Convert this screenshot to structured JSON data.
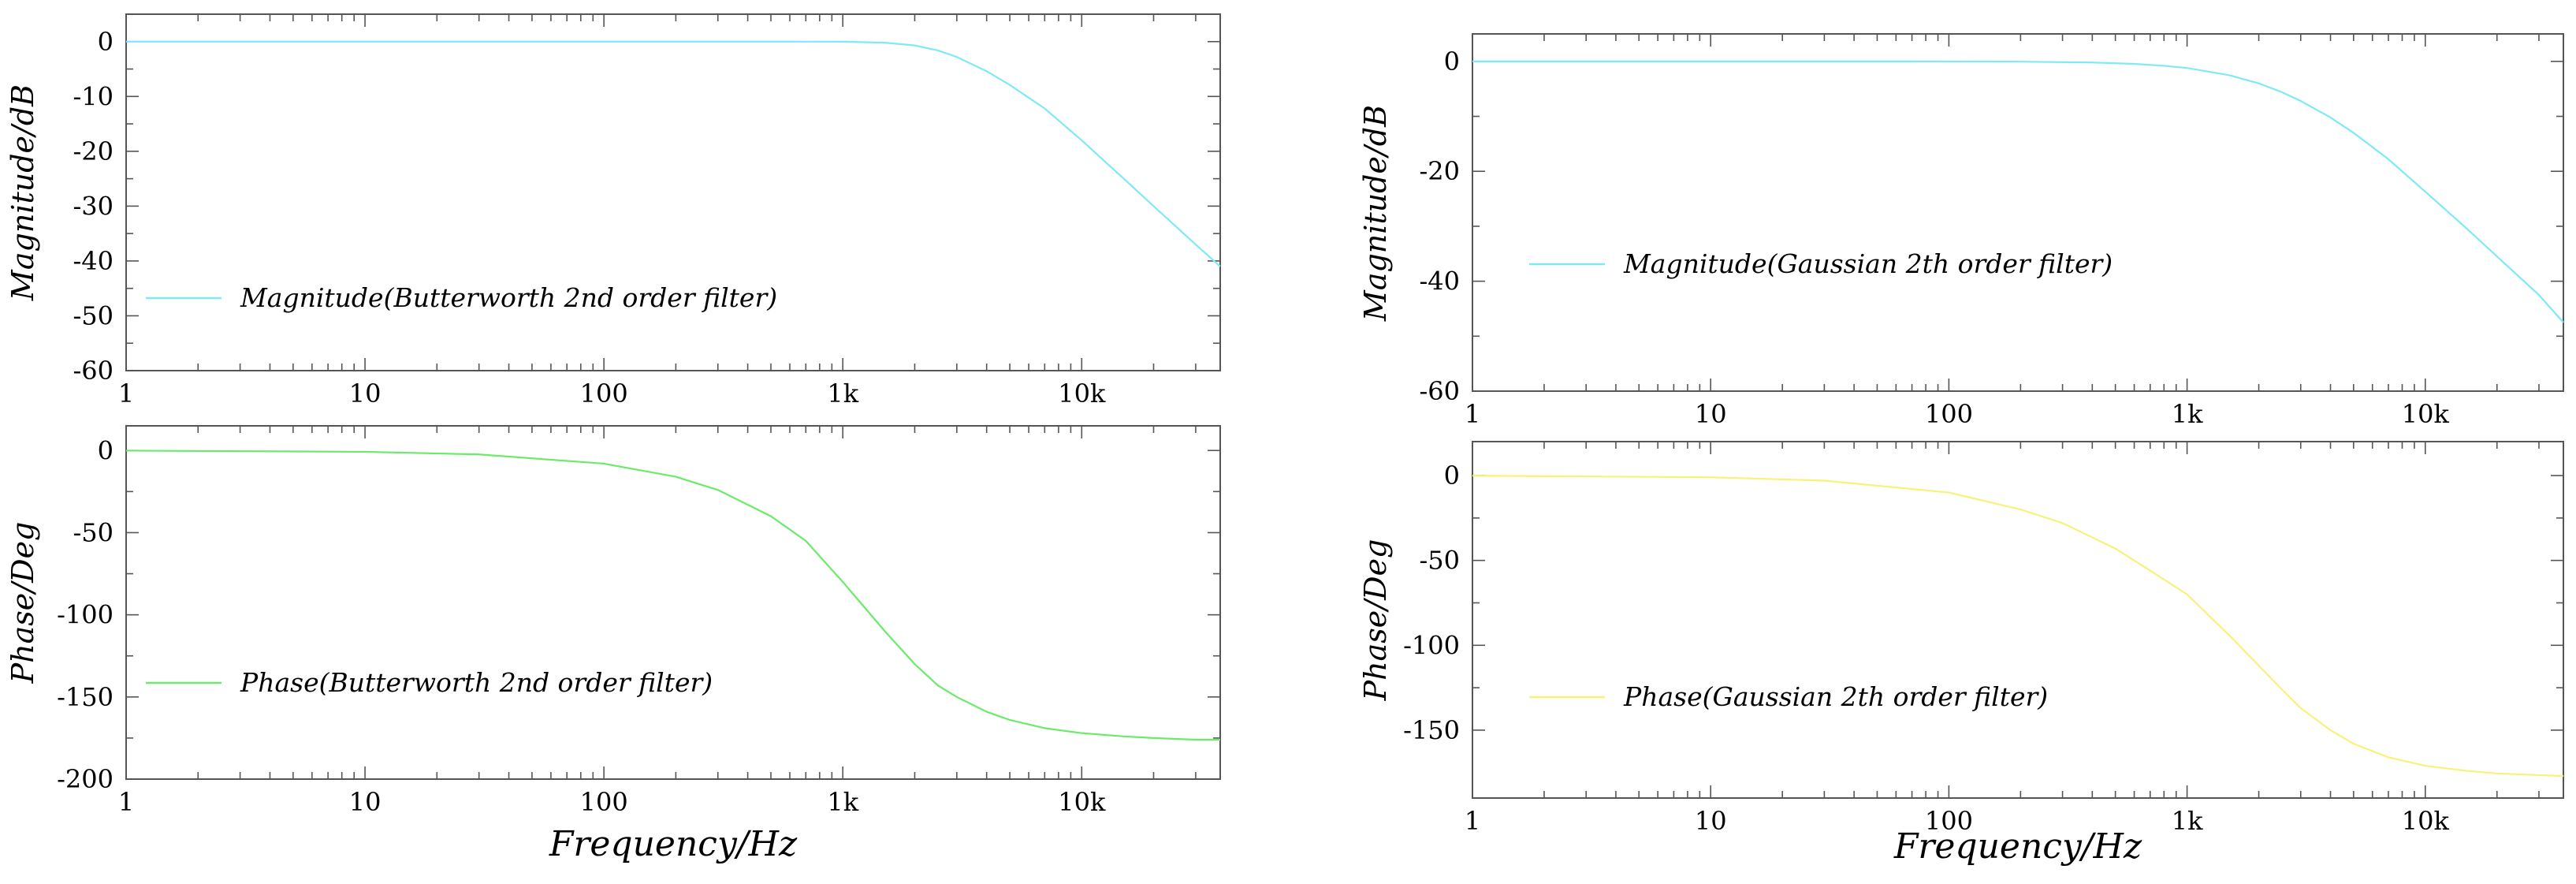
{
  "chart_data": [
    {
      "type": "line",
      "panel": "top-left",
      "xscale": "log",
      "xlim": [
        1,
        38000
      ],
      "ylim": [
        -60,
        5
      ],
      "yticks": [
        0,
        -10,
        -20,
        -30,
        -40,
        -50,
        -60
      ],
      "xticks": [
        1,
        10,
        100,
        1000,
        10000
      ],
      "xtick_labels": [
        "1",
        "10",
        "100",
        "1k",
        "10k"
      ],
      "ylabel": "Magnitude/dB",
      "xlabel": "",
      "legend_placement": "lower-left",
      "series": [
        {
          "name": "Magnitude(Butterworth 2nd order filter)",
          "color": "#7fe9f5",
          "x": [
            1,
            10,
            100,
            300,
            600,
            1000,
            1500,
            2000,
            2500,
            3000,
            4000,
            5000,
            7000,
            10000,
            15000,
            20000,
            30000,
            38000
          ],
          "y": [
            0,
            0,
            0,
            0,
            0,
            -0.02,
            -0.2,
            -0.7,
            -1.6,
            -2.8,
            -5.4,
            -7.9,
            -12.2,
            -18,
            -25,
            -30,
            -37,
            -41
          ]
        }
      ]
    },
    {
      "type": "line",
      "panel": "bottom-left",
      "xscale": "log",
      "xlim": [
        1,
        38000
      ],
      "ylim": [
        -200,
        15
      ],
      "yticks": [
        0,
        -50,
        -100,
        -150,
        -200
      ],
      "xticks": [
        1,
        10,
        100,
        1000,
        10000
      ],
      "xtick_labels": [
        "1",
        "10",
        "100",
        "1k",
        "10k"
      ],
      "ylabel": "Phase/Deg",
      "xlabel": "Frequency/Hz",
      "legend_placement": "lower-left",
      "series": [
        {
          "name": "Phase(Butterworth 2nd order filter)",
          "color": "#6bea6b",
          "x": [
            1,
            10,
            30,
            100,
            200,
            300,
            500,
            700,
            1000,
            1500,
            2000,
            2500,
            3000,
            4000,
            5000,
            7000,
            10000,
            15000,
            20000,
            30000,
            38000
          ],
          "y": [
            -0.1,
            -0.8,
            -2.4,
            -8,
            -16,
            -24,
            -40,
            -55,
            -80,
            -110,
            -130,
            -143,
            -150,
            -159,
            -164,
            -169,
            -172,
            -174,
            -175,
            -176,
            -176
          ]
        }
      ]
    },
    {
      "type": "line",
      "panel": "top-right",
      "xscale": "log",
      "xlim": [
        1,
        38000
      ],
      "ylim": [
        -60,
        5
      ],
      "yticks": [
        0,
        -20,
        -40,
        -60
      ],
      "xticks": [
        1,
        10,
        100,
        1000,
        10000
      ],
      "xtick_labels": [
        "1",
        "10",
        "100",
        "1k",
        "10k"
      ],
      "ylabel": "Magnitude/dB",
      "xlabel": "",
      "legend_placement": "lower-left",
      "series": [
        {
          "name": "Magnitude(Gaussian 2th order filter)",
          "color": "#7fe9f5",
          "x": [
            1,
            10,
            100,
            200,
            400,
            600,
            800,
            1000,
            1500,
            2000,
            2500,
            3000,
            4000,
            5000,
            7000,
            10000,
            15000,
            20000,
            30000,
            38000
          ],
          "y": [
            0,
            0,
            -0.01,
            -0.05,
            -0.2,
            -0.45,
            -0.8,
            -1.2,
            -2.5,
            -4,
            -5.6,
            -7.2,
            -10.2,
            -13,
            -17.8,
            -23.7,
            -30.5,
            -35.5,
            -42.5,
            -47.5
          ]
        }
      ]
    },
    {
      "type": "line",
      "panel": "bottom-right",
      "xscale": "log",
      "xlim": [
        1,
        38000
      ],
      "ylim": [
        -190,
        20
      ],
      "yticks": [
        0,
        -50,
        -100,
        -150
      ],
      "xticks": [
        1,
        10,
        100,
        1000,
        10000
      ],
      "xtick_labels": [
        "1",
        "10",
        "100",
        "1k",
        "10k"
      ],
      "ylabel": "Phase/Deg",
      "xlabel": "Frequency/Hz",
      "legend_placement": "lower-left",
      "series": [
        {
          "name": "Phase(Gaussian 2th order filter)",
          "color": "#f7f27a",
          "x": [
            1,
            10,
            30,
            100,
            200,
            300,
            500,
            700,
            1000,
            1500,
            2000,
            2500,
            3000,
            4000,
            5000,
            7000,
            10000,
            15000,
            20000,
            30000,
            38000
          ],
          "y": [
            -0.1,
            -1,
            -3,
            -10,
            -20,
            -28,
            -43,
            -56,
            -70,
            -94,
            -112,
            -126,
            -137,
            -150,
            -158,
            -166,
            -171,
            -174,
            -175.5,
            -176.5,
            -177
          ]
        }
      ]
    }
  ]
}
